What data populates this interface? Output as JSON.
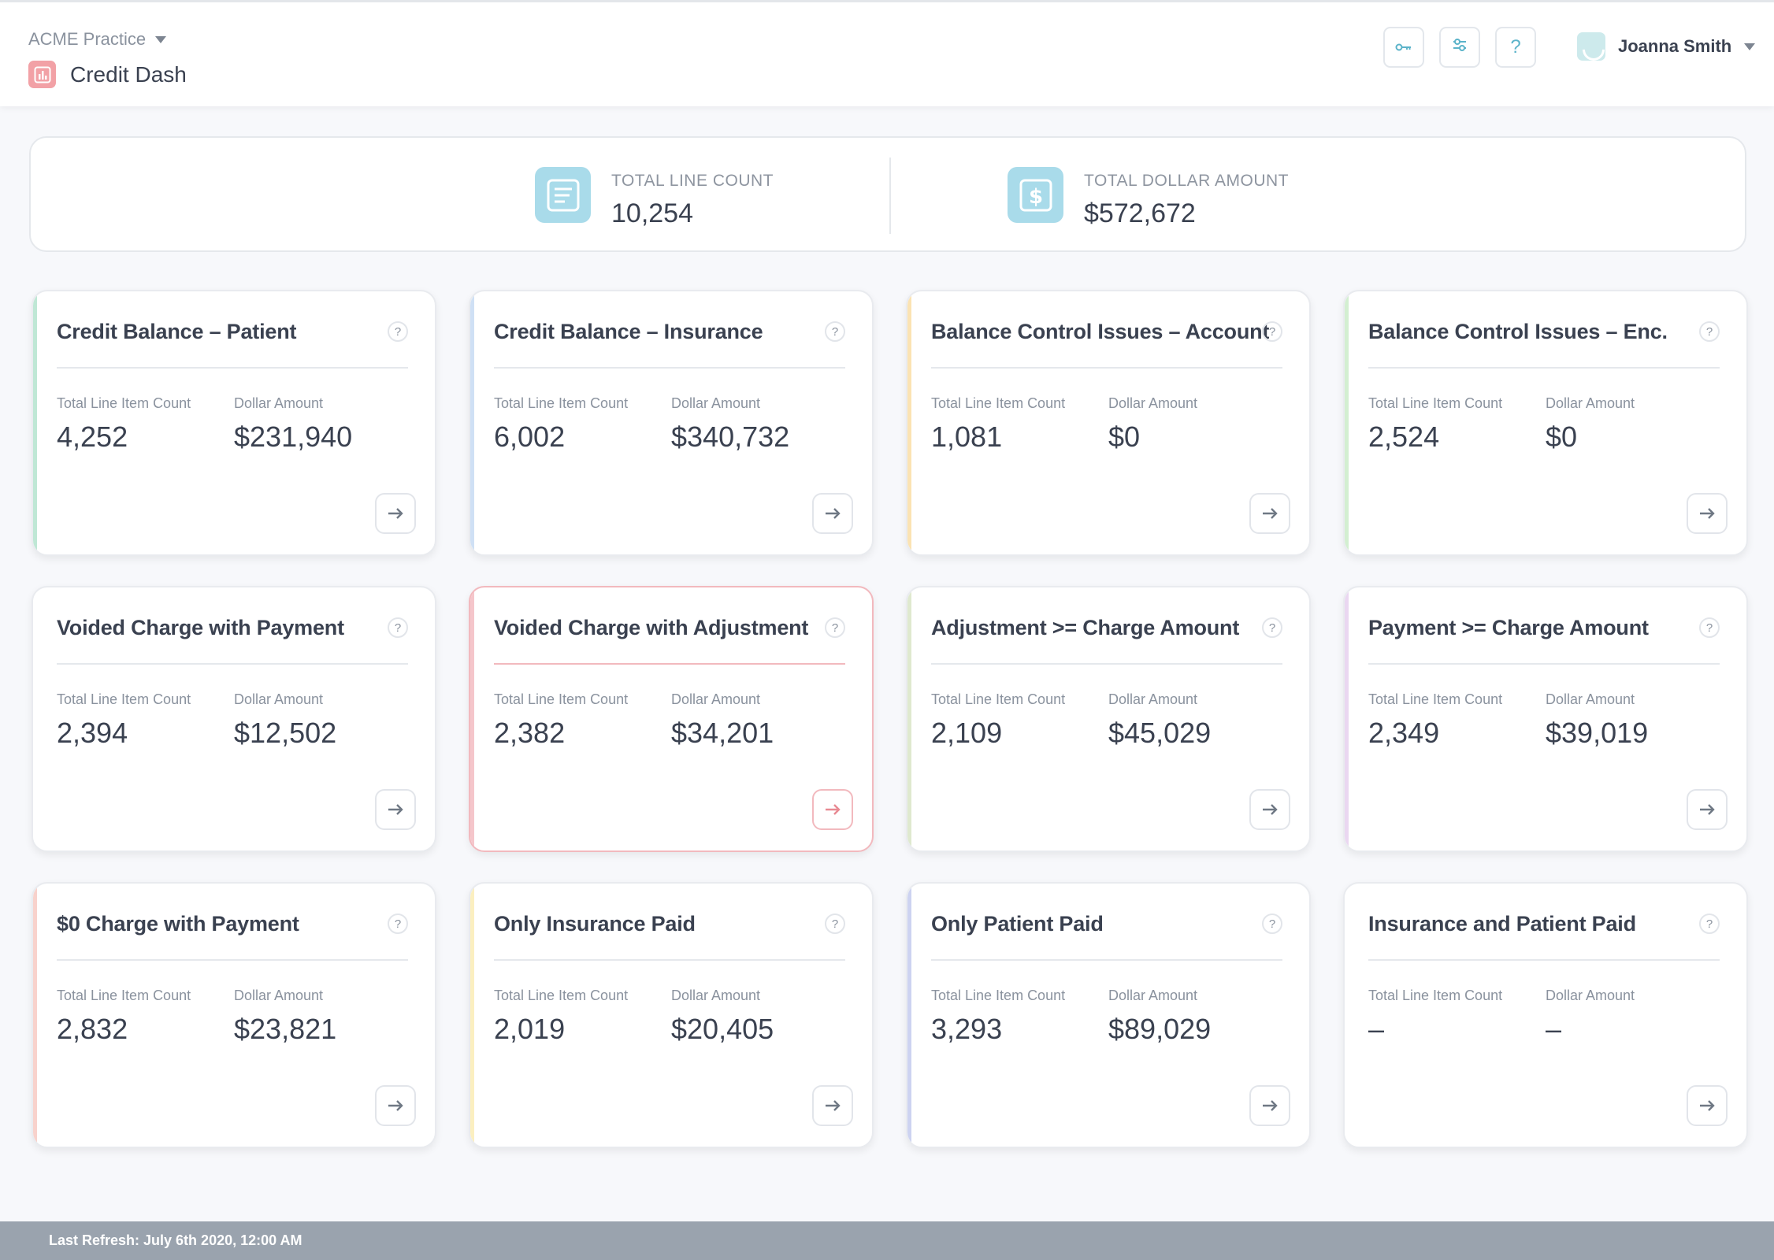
{
  "header": {
    "practice": "ACME Practice",
    "app_title": "Credit Dash",
    "user_name": "Joanna Smith",
    "help_label": "?"
  },
  "summary": {
    "line_count_label": "TOTAL LINE COUNT",
    "line_count_value": "10,254",
    "dollar_label": "TOTAL DOLLAR AMOUNT",
    "dollar_value": "$572,672"
  },
  "card_labels": {
    "count": "Total Line Item Count",
    "amount": "Dollar Amount"
  },
  "cards": [
    {
      "title": "Credit Balance – Patient",
      "count": "4,252",
      "amount": "$231,940",
      "accent": "#bfe7d5"
    },
    {
      "title": "Credit Balance – Insurance",
      "count": "6,002",
      "amount": "$340,732",
      "accent": "#cfe0f5"
    },
    {
      "title": "Balance Control Issues – Account",
      "count": "1,081",
      "amount": "$0",
      "accent": "#fbe3b3"
    },
    {
      "title": "Balance Control Issues – Enc.",
      "count": "2,524",
      "amount": "$0",
      "accent": "#d3efd1"
    },
    {
      "title": "Voided Charge with Payment",
      "count": "2,394",
      "amount": "$12,502",
      "accent": "#ffffff"
    },
    {
      "title": "Voided Charge with Adjustment",
      "count": "2,382",
      "amount": "$34,201",
      "accent": "#f5c6cb"
    },
    {
      "title": "Adjustment >= Charge Amount",
      "count": "2,109",
      "amount": "$45,029",
      "accent": "#dfe9cf"
    },
    {
      "title": "Payment >= Charge Amount",
      "count": "2,349",
      "amount": "$39,019",
      "accent": "#ead7f1"
    },
    {
      "title": "$0 Charge with Payment",
      "count": "2,832",
      "amount": "$23,821",
      "accent": "#f8d2cc"
    },
    {
      "title": "Only Insurance Paid",
      "count": "2,019",
      "amount": "$20,405",
      "accent": "#fbefc0"
    },
    {
      "title": "Only Patient Paid",
      "count": "3,293",
      "amount": "$89,029",
      "accent": "#cdd3f1"
    },
    {
      "title": "Insurance and Patient Paid",
      "count": "–",
      "amount": "–",
      "accent": "#ffffff"
    }
  ],
  "footer": {
    "last_refresh": "Last Refresh: July 6th 2020, 12:00 AM"
  },
  "colors": {
    "accent_teal": "#5bb3c9",
    "summary_icon_bg": "#a9dbea",
    "app_icon_bg": "#f2a1a6",
    "footer_bg": "#9aa3ae"
  }
}
